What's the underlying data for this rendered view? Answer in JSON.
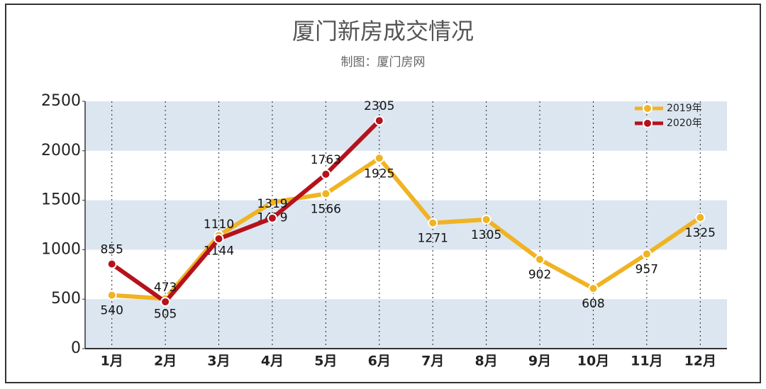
{
  "chart_data": {
    "type": "line",
    "title": "厦门新房成交情况",
    "subtitle": "制图：厦门房网",
    "categories": [
      "1月",
      "2月",
      "3月",
      "4月",
      "5月",
      "6月",
      "7月",
      "8月",
      "9月",
      "10月",
      "11月",
      "12月"
    ],
    "series": [
      {
        "name": "2019年",
        "color": "#f0b323",
        "values": [
          540,
          505,
          1144,
          1479,
          1566,
          1925,
          1271,
          1305,
          902,
          608,
          957,
          1325
        ]
      },
      {
        "name": "2020年",
        "color": "#b5121b",
        "values": [
          855,
          473,
          1110,
          1319,
          1763,
          2305,
          null,
          null,
          null,
          null,
          null,
          null
        ]
      }
    ],
    "ylim": [
      0,
      2500
    ],
    "yticks": [
      0,
      500,
      1000,
      1500,
      2000,
      2500
    ],
    "grid": true,
    "legend": "top-right"
  }
}
